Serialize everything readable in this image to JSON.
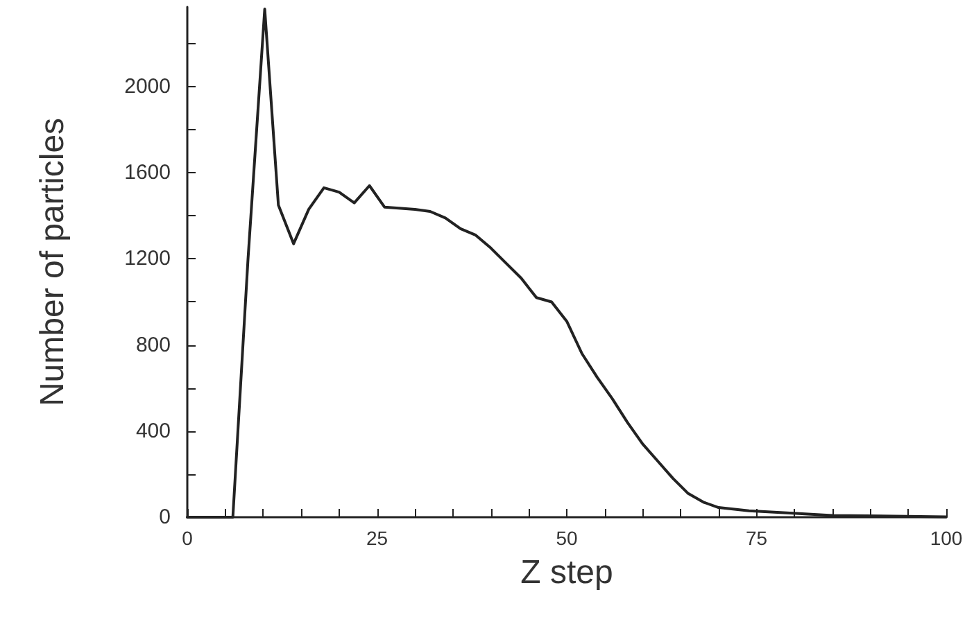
{
  "chart_data": {
    "type": "line",
    "xlabel": "Z step",
    "ylabel": "Number of particles",
    "x": [
      0,
      6,
      8,
      10.2,
      12,
      14,
      16,
      18,
      20,
      22,
      24,
      26,
      30,
      32,
      34,
      36,
      38,
      40,
      42,
      44,
      46,
      48,
      50,
      52,
      54,
      56,
      58,
      60,
      62,
      64,
      66,
      68,
      70,
      74,
      79,
      85,
      100
    ],
    "series": [
      {
        "color": "#222222",
        "values": [
          0,
          0,
          1200,
          2360,
          1450,
          1270,
          1430,
          1530,
          1510,
          1460,
          1540,
          1440,
          1430,
          1420,
          1390,
          1340,
          1310,
          1250,
          1180,
          1110,
          1020,
          1000,
          910,
          760,
          650,
          550,
          440,
          340,
          260,
          180,
          110,
          70,
          45,
          30,
          20,
          8,
          2
        ]
      }
    ],
    "xlim": [
      0,
      100
    ],
    "xticks": [
      0,
      {
        "value": 5,
        "label": null
      },
      {
        "value": 10,
        "label": null
      },
      {
        "value": 15,
        "label": null
      },
      {
        "value": 20,
        "label": null
      },
      25,
      {
        "value": 30,
        "label": null
      },
      {
        "value": 35,
        "label": null
      },
      {
        "value": 40,
        "label": null
      },
      {
        "value": 45,
        "label": null
      },
      50,
      {
        "value": 55,
        "label": null
      },
      {
        "value": 60,
        "label": null
      },
      {
        "value": 65,
        "label": null
      },
      {
        "value": 70,
        "label": null
      },
      75,
      {
        "value": 80,
        "label": null
      },
      {
        "value": 85,
        "label": null
      },
      {
        "value": 90,
        "label": null
      },
      {
        "value": 95,
        "label": null
      },
      100
    ],
    "ylim": [
      0,
      2370
    ],
    "yticks": [
      0,
      {
        "value": 200,
        "label": null
      },
      400,
      {
        "value": 600,
        "label": null
      },
      800,
      {
        "value": 1000,
        "label": null
      },
      1200,
      {
        "value": 1400,
        "label": null
      },
      1600,
      {
        "value": 1800,
        "label": null
      },
      2000,
      {
        "value": 2200,
        "label": null
      }
    ],
    "grid": false,
    "marker": "none",
    "line_style": "solid"
  }
}
